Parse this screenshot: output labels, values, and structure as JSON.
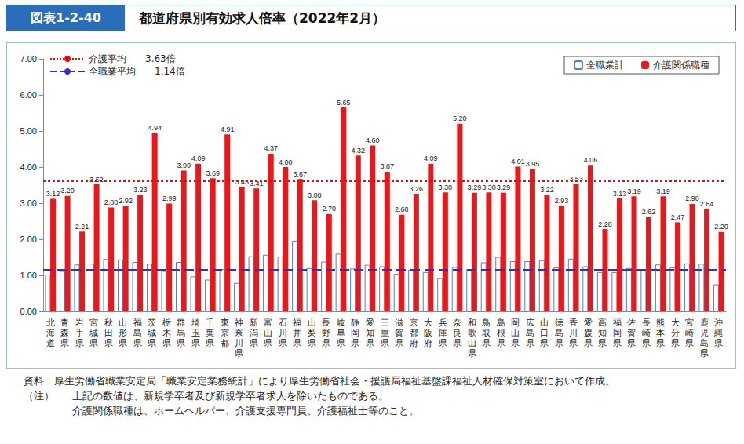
{
  "chart_data": {
    "type": "bar",
    "figure_label": "図表1-2-40",
    "title": "都道府県別有効求人倍率（2022年2月）",
    "categories": [
      "北海道",
      "青森県",
      "岩手県",
      "宮城県",
      "秋田県",
      "山形県",
      "福島県",
      "茨城県",
      "栃木県",
      "群馬県",
      "埼玉県",
      "千葉県",
      "東京都",
      "神奈川県",
      "新潟県",
      "富山県",
      "石川県",
      "福井県",
      "山梨県",
      "長野県",
      "岐阜県",
      "静岡県",
      "愛知県",
      "三重県",
      "滋賀県",
      "京都府",
      "大阪府",
      "兵庫県",
      "奈良県",
      "和歌山県",
      "鳥取県",
      "島根県",
      "岡山県",
      "広島県",
      "山口県",
      "徳島県",
      "香川県",
      "愛媛県",
      "高知県",
      "福岡県",
      "佐賀県",
      "長崎県",
      "熊本県",
      "大分県",
      "宮崎県",
      "鹿児島県",
      "沖縄県"
    ],
    "series": [
      {
        "name": "全職業計",
        "color": "#4f81bd",
        "data_labels": false,
        "values": [
          1.02,
          1.12,
          1.3,
          1.32,
          1.45,
          1.44,
          1.37,
          1.32,
          1.12,
          1.37,
          0.97,
          0.88,
          1.17,
          0.79,
          1.53,
          1.57,
          1.52,
          1.96,
          1.2,
          1.38,
          1.6,
          1.19,
          1.29,
          1.25,
          1.04,
          1.15,
          1.09,
          0.92,
          1.23,
          1.17,
          1.36,
          1.51,
          1.39,
          1.39,
          1.42,
          1.22,
          1.46,
          1.25,
          1.09,
          1.09,
          1.2,
          1.13,
          1.3,
          1.22,
          1.33,
          1.32,
          0.75
        ]
      },
      {
        "name": "介護関係職種",
        "color": "#e8191d",
        "data_labels": true,
        "values": [
          3.12,
          3.2,
          2.21,
          3.52,
          2.88,
          2.92,
          3.23,
          4.94,
          2.99,
          3.9,
          4.09,
          3.69,
          4.91,
          3.45,
          3.41,
          4.37,
          4.0,
          3.67,
          3.08,
          2.7,
          5.65,
          4.32,
          4.6,
          3.87,
          2.68,
          3.26,
          4.09,
          3.3,
          5.2,
          3.29,
          3.3,
          3.29,
          4.01,
          3.95,
          3.22,
          2.93,
          3.53,
          4.06,
          2.28,
          3.13,
          3.19,
          2.62,
          3.19,
          2.47,
          2.98,
          2.84,
          2.2
        ],
        "value_labels": [
          "3.12",
          "3.20",
          "2.21",
          "3.52",
          "2.88",
          "2.92",
          "3.23",
          "4.94",
          "2.99",
          "3.90",
          "4.09",
          "3.69",
          "4.91",
          "3.45",
          "3.41",
          "4.37",
          "4.00",
          "3.67",
          "3.08",
          "2.70",
          "5.65",
          "4.32",
          "4.60",
          "3.87",
          "2.68",
          "3.26",
          "4.09",
          "3.30",
          "5.20",
          "3.29",
          "3.30",
          "3.29",
          "4.01",
          "3.95",
          "3.22",
          "2.93",
          "3.53",
          "4.06",
          "2.28",
          "3.13",
          "3.19",
          "2.62",
          "3.19",
          "2.47",
          "2.98",
          "2.84",
          "2.20"
        ]
      }
    ],
    "annotations": [
      {
        "text": "介護平均",
        "value": 3.63,
        "value_label": "3.63倍",
        "color": "#ff0000",
        "line_style": "dotted"
      },
      {
        "text": "全職業平均",
        "value": 1.14,
        "value_label": "1.14倍",
        "color": "#3030d0",
        "line_style": "dashed"
      }
    ],
    "ylim": [
      0,
      7
    ],
    "yticks": [
      {
        "value": 0,
        "label": "0.00"
      },
      {
        "value": 1,
        "label": "1.00"
      },
      {
        "value": 2,
        "label": "2.00"
      },
      {
        "value": 3,
        "label": "3.00"
      },
      {
        "value": 4,
        "label": "4.00"
      },
      {
        "value": 5,
        "label": "5.00"
      },
      {
        "value": 6,
        "label": "6.00"
      },
      {
        "value": 7,
        "label": "7.00"
      }
    ],
    "grid": false,
    "legend": "upper right",
    "source": "資料：厚生労働省職業安定局「職業安定業務統計」により厚生労働省社会・援護局福祉基盤課福祉人材確保対策室において作成。",
    "notes_label": "（注）",
    "notes": [
      "上記の数値は、新規学卒者及び新規学卒者求人を除いたものである。",
      "介護関係職種は、ホームヘルパー、介護支援専門員、介護福祉士等のこと。"
    ]
  }
}
